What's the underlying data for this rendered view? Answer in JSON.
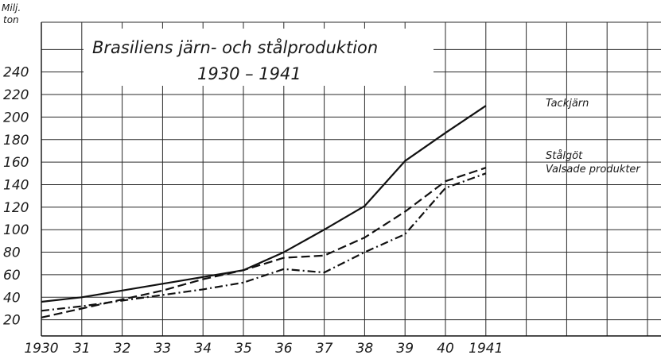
{
  "chart_data": {
    "type": "line",
    "title": "Brasiliens järn- och stålproduktion",
    "subtitle": "1930 – 1941",
    "ylabel": "Milj. ton",
    "ylabel_line1": "Milj.",
    "ylabel_line2": "ton",
    "xlabel": "",
    "x": [
      1930,
      1931,
      1932,
      1933,
      1934,
      1935,
      1936,
      1937,
      1938,
      1939,
      1940,
      1941
    ],
    "x_tick_labels": [
      "1930",
      "31",
      "32",
      "33",
      "34",
      "35",
      "36",
      "37",
      "38",
      "39",
      "40",
      "1941"
    ],
    "y_ticks": [
      20,
      40,
      60,
      80,
      100,
      120,
      140,
      160,
      180,
      200,
      220,
      240
    ],
    "ylim": [
      0,
      270
    ],
    "grid": true,
    "series": [
      {
        "name": "Tackjärn",
        "style": "solid",
        "values": [
          36,
          40,
          46,
          52,
          58,
          64,
          80,
          100,
          121,
          161,
          186,
          210
        ]
      },
      {
        "name": "Stålgöt",
        "style": "dashed",
        "values": [
          22,
          30,
          38,
          46,
          56,
          64,
          75,
          77,
          93,
          116,
          143,
          155
        ]
      },
      {
        "name": "Valsade produkter",
        "style": "dashdot",
        "values": [
          28,
          32,
          37,
          42,
          47,
          53,
          65,
          62,
          80,
          96,
          137,
          150
        ]
      }
    ]
  }
}
